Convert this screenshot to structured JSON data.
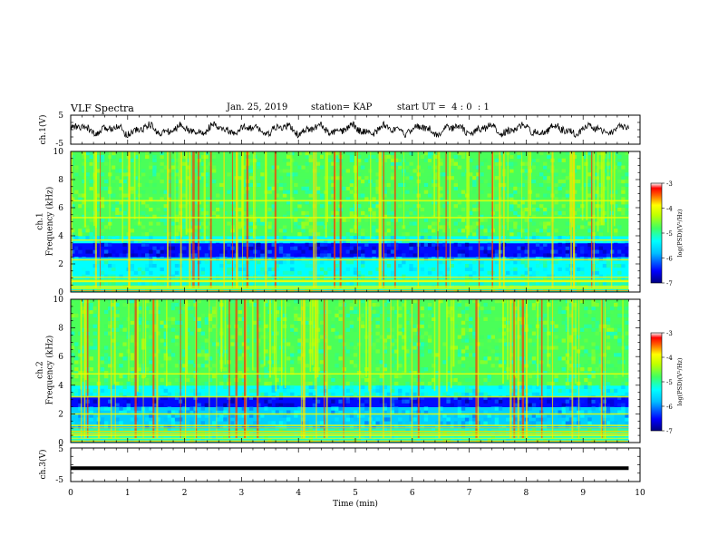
{
  "header": {
    "title": "VLF Spectra",
    "date": "Jan. 25, 2019",
    "station": "station= KAP",
    "start_ut": "start UT =  4 : 0  : 1"
  },
  "chart_data": [
    {
      "type": "line",
      "ylabel": "ch.1(V)",
      "ylim": [
        -5,
        5
      ],
      "yticks": [
        "5",
        "-5"
      ],
      "xlim": [
        0,
        10
      ],
      "description_series": "noisy waveform oscillating roughly between -2 and +2 V over 0 to ~9.8 min",
      "x_end": 9.8
    },
    {
      "type": "heatmap",
      "ylabel": "ch.1\nFrequency (kHz)",
      "ylim": [
        0,
        10
      ],
      "yticks": [
        "0",
        "2",
        "4",
        "6",
        "8",
        "10"
      ],
      "xlim": [
        0,
        10
      ],
      "x_end": 9.8,
      "colorbar": {
        "label": "log(PSD)(V²/Hz)",
        "range": [
          -7,
          -3
        ],
        "ticks": [
          "-3",
          "-4",
          "-5",
          "-6",
          "-7"
        ]
      },
      "bands_khz": [
        {
          "f_lo": 0.0,
          "f_hi": 1.0,
          "level": "green-cyan with many horizontal lines"
        },
        {
          "f_lo": 1.0,
          "f_hi": 2.2,
          "level": "cyan"
        },
        {
          "f_lo": 2.2,
          "f_hi": 2.6,
          "level": "cyan-blue"
        },
        {
          "f_lo": 2.6,
          "f_hi": 3.4,
          "level": "dark blue"
        },
        {
          "f_lo": 3.4,
          "f_hi": 4.0,
          "level": "cyan"
        },
        {
          "f_lo": 4.0,
          "f_hi": 10.0,
          "level": "green"
        }
      ],
      "bright_line_khz": [
        2.3,
        3.7,
        5.3,
        6.5,
        0.4,
        0.8
      ]
    },
    {
      "type": "heatmap",
      "ylabel": "ch.2\nFrequency (kHz)",
      "ylim": [
        0,
        10
      ],
      "yticks": [
        "0",
        "2",
        "4",
        "6",
        "8",
        "10"
      ],
      "xlim": [
        0,
        10
      ],
      "x_end": 9.8,
      "colorbar": {
        "label": "log(PSD)(V²/Hz)",
        "range": [
          -7,
          -3
        ],
        "ticks": [
          "-3",
          "-4",
          "-5",
          "-6",
          "-7"
        ]
      },
      "bands_khz": [
        {
          "f_lo": 0.0,
          "f_hi": 1.0,
          "level": "green-cyan with many horizontal lines"
        },
        {
          "f_lo": 1.0,
          "f_hi": 2.4,
          "level": "cyan-blue"
        },
        {
          "f_lo": 2.4,
          "f_hi": 3.2,
          "level": "dark blue"
        },
        {
          "f_lo": 3.2,
          "f_hi": 4.0,
          "level": "cyan"
        },
        {
          "f_lo": 4.0,
          "f_hi": 10.0,
          "level": "green"
        }
      ],
      "bright_line_khz": [
        2.0,
        3.2,
        4.8,
        0.5,
        1.2
      ]
    },
    {
      "type": "line",
      "ylabel": "ch.3(V)",
      "ylim": [
        -5,
        5
      ],
      "yticks": [
        "5",
        "-5"
      ],
      "xlim": [
        0,
        10
      ],
      "x_end": 9.8,
      "series": [
        {
          "values_constant": -1
        }
      ]
    }
  ],
  "x_axis": {
    "label": "Time (min)",
    "ticks": [
      "0",
      "1",
      "2",
      "3",
      "4",
      "5",
      "6",
      "7",
      "8",
      "9",
      "10"
    ]
  },
  "colors": {
    "scale": [
      "#000080",
      "#0000ff",
      "#0080ff",
      "#00ffff",
      "#40ff80",
      "#80ff00",
      "#ffff00",
      "#ff8000",
      "#ff0000",
      "#800000"
    ]
  }
}
